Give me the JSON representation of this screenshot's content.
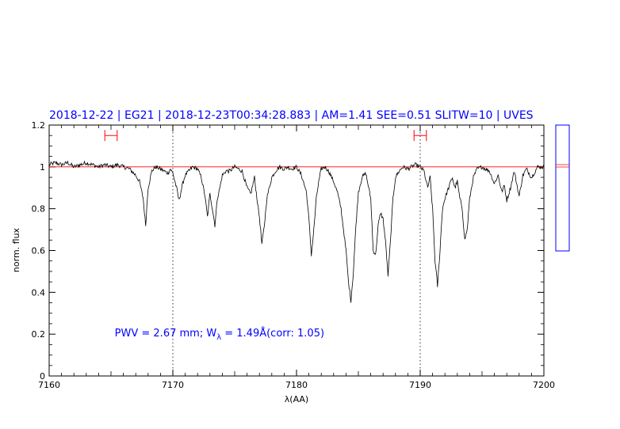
{
  "chart_data": {
    "type": "line",
    "title": "2018-12-22 | EG21 | 2018-12-23T00:34:28.883 | AM=1.41 SEE=0.51 SLITW=10 | UVES",
    "xlabel": "λ(AA)",
    "ylabel": "norm. flux",
    "xlim": [
      7160,
      7200
    ],
    "ylim": [
      0,
      1.2
    ],
    "x_ticks": [
      7160,
      7170,
      7180,
      7190,
      7200
    ],
    "x_tick_labels": [
      "7160",
      "7170",
      "7180",
      "7190",
      "7200"
    ],
    "y_ticks": [
      0,
      0.2,
      0.4,
      0.6,
      0.8,
      1,
      1.2
    ],
    "y_tick_labels": [
      "0",
      "0.2",
      "0.4",
      "0.6",
      "0.8",
      "1",
      "1.2"
    ],
    "grid": false,
    "legend": "none",
    "continuum_level": 1.0,
    "dotted_vlines_x": [
      7170,
      7190
    ],
    "fit_windows": [
      {
        "x_start": 7164.5,
        "x_end": 7165.5,
        "y": 1.15
      },
      {
        "x_start": 7189.5,
        "x_end": 7190.5,
        "y": 1.15
      }
    ],
    "annotation": {
      "pwv_text": "PWV  =  2.67  mm;  W",
      "sub": "λ",
      "rest_text": "  =  1.49Å(corr: 1.05)",
      "x": 7165.3,
      "y": 0.19
    },
    "series": [
      {
        "name": "",
        "color": "#000000",
        "x": [
          7160.0,
          7160.5,
          7161.0,
          7161.5,
          7162.0,
          7162.5,
          7163.0,
          7163.5,
          7164.0,
          7164.5,
          7165.0,
          7165.5,
          7166.0,
          7166.5,
          7167.0,
          7167.3,
          7167.6,
          7167.8,
          7168.0,
          7168.3,
          7168.6,
          7169.0,
          7169.3,
          7169.6,
          7169.8,
          7170.0,
          7170.3,
          7170.5,
          7170.8,
          7171.0,
          7171.3,
          7171.6,
          7172.0,
          7172.3,
          7172.6,
          7172.8,
          7173.0,
          7173.2,
          7173.4,
          7173.6,
          7173.8,
          7174.0,
          7174.3,
          7174.6,
          7175.0,
          7175.3,
          7175.6,
          7176.0,
          7176.3,
          7176.6,
          7176.8,
          7177.0,
          7177.2,
          7177.4,
          7177.6,
          7177.8,
          7178.0,
          7178.3,
          7178.6,
          7179.0,
          7179.3,
          7179.6,
          7180.0,
          7180.4,
          7180.8,
          7181.0,
          7181.2,
          7181.4,
          7181.6,
          7181.8,
          7182.0,
          7182.3,
          7182.6,
          7183.0,
          7183.3,
          7183.6,
          7184.0,
          7184.2,
          7184.4,
          7184.6,
          7184.8,
          7185.0,
          7185.3,
          7185.6,
          7186.0,
          7186.2,
          7186.4,
          7186.6,
          7186.8,
          7187.0,
          7187.2,
          7187.4,
          7187.6,
          7187.8,
          7188.0,
          7188.3,
          7188.6,
          7189.0,
          7189.3,
          7189.6,
          7190.0,
          7190.3,
          7190.6,
          7190.8,
          7191.0,
          7191.2,
          7191.4,
          7191.6,
          7191.8,
          7192.0,
          7192.3,
          7192.6,
          7192.8,
          7193.0,
          7193.2,
          7193.4,
          7193.6,
          7193.8,
          7194.0,
          7194.3,
          7194.6,
          7195.0,
          7195.3,
          7195.6,
          7196.0,
          7196.3,
          7196.6,
          7196.8,
          7197.0,
          7197.3,
          7197.6,
          7197.8,
          7198.0,
          7198.3,
          7198.6,
          7199.0,
          7199.5,
          7200.0
        ],
        "y": [
          1.01,
          1.02,
          1.01,
          1.02,
          1.0,
          1.01,
          1.02,
          1.01,
          1.0,
          1.01,
          1.0,
          1.01,
          1.0,
          0.99,
          0.96,
          0.93,
          0.85,
          0.72,
          0.9,
          0.98,
          1.0,
          0.99,
          0.98,
          0.97,
          0.99,
          0.97,
          0.9,
          0.84,
          0.92,
          0.96,
          0.98,
          1.0,
          0.99,
          0.95,
          0.86,
          0.76,
          0.87,
          0.8,
          0.72,
          0.85,
          0.9,
          0.96,
          0.98,
          0.98,
          1.0,
          0.99,
          0.98,
          0.9,
          0.87,
          0.95,
          0.85,
          0.76,
          0.63,
          0.72,
          0.85,
          0.9,
          0.95,
          0.98,
          1.0,
          0.99,
          1.0,
          0.99,
          1.0,
          0.96,
          0.88,
          0.75,
          0.58,
          0.7,
          0.85,
          0.93,
          0.99,
          1.0,
          0.98,
          0.93,
          0.88,
          0.8,
          0.6,
          0.45,
          0.36,
          0.5,
          0.72,
          0.88,
          0.95,
          0.97,
          0.85,
          0.6,
          0.58,
          0.72,
          0.78,
          0.75,
          0.64,
          0.48,
          0.65,
          0.85,
          0.95,
          0.98,
          1.0,
          0.99,
          1.0,
          1.01,
          1.0,
          0.98,
          0.9,
          0.95,
          0.8,
          0.55,
          0.43,
          0.6,
          0.8,
          0.85,
          0.9,
          0.95,
          0.9,
          0.93,
          0.85,
          0.8,
          0.65,
          0.7,
          0.85,
          0.95,
          0.99,
          1.0,
          0.99,
          0.98,
          0.92,
          0.96,
          0.88,
          0.91,
          0.84,
          0.9,
          0.98,
          0.92,
          0.86,
          0.96,
          0.99,
          0.95,
          1.0,
          1.0
        ]
      }
    ]
  }
}
